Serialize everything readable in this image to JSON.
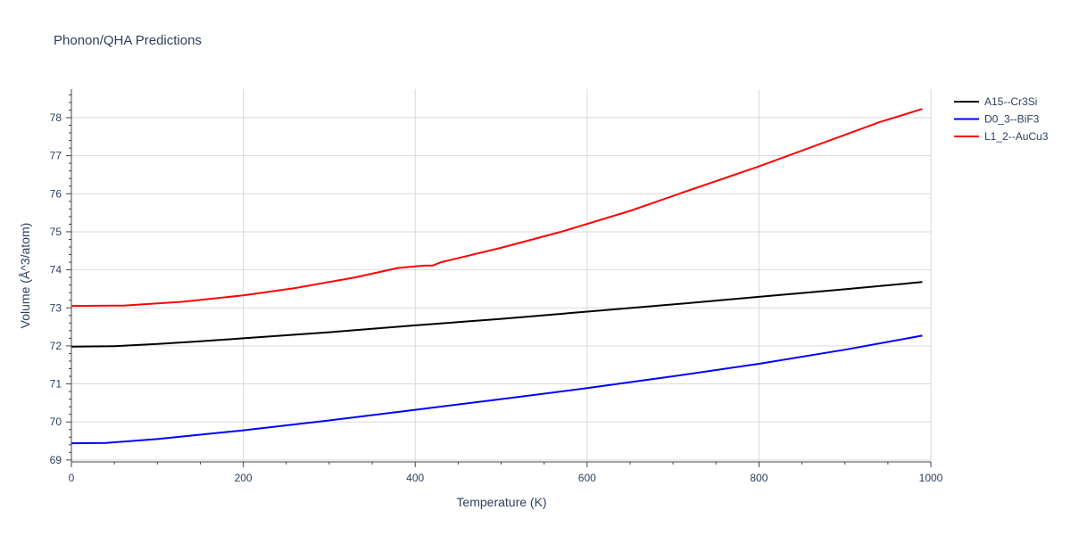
{
  "chart_data": {
    "type": "line",
    "title": "Phonon/QHA Predictions",
    "xlabel": "Temperature (K)",
    "ylabel": "Volume (Å^3/atom)",
    "xlim": [
      0,
      1000
    ],
    "ylim": [
      68.95,
      78.75
    ],
    "x_ticks": [
      0,
      200,
      400,
      600,
      800,
      1000
    ],
    "y_ticks": [
      69,
      70,
      71,
      72,
      73,
      74,
      75,
      76,
      77,
      78
    ],
    "grid": true,
    "legend_position": "top-right",
    "series": [
      {
        "name": "A15--Cr3Si",
        "color": "#000000",
        "x": [
          0,
          50,
          100,
          150,
          200,
          300,
          400,
          500,
          600,
          700,
          800,
          900,
          990
        ],
        "y": [
          71.98,
          71.99,
          72.05,
          72.12,
          72.2,
          72.36,
          72.54,
          72.71,
          72.9,
          73.09,
          73.29,
          73.49,
          73.68
        ]
      },
      {
        "name": "D0_3--BiF3",
        "color": "#0000ff",
        "x": [
          0,
          40,
          100,
          200,
          300,
          400,
          500,
          600,
          700,
          800,
          900,
          990
        ],
        "y": [
          69.44,
          69.45,
          69.55,
          69.78,
          70.04,
          70.32,
          70.6,
          70.89,
          71.2,
          71.53,
          71.9,
          72.27
        ]
      },
      {
        "name": "L1_2--AuCu3",
        "color": "#ff0000",
        "x": [
          0,
          60,
          130,
          200,
          260,
          330,
          380,
          410,
          420,
          430,
          500,
          570,
          650,
          720,
          800,
          870,
          940,
          990
        ],
        "y": [
          73.05,
          73.06,
          73.16,
          73.33,
          73.52,
          73.8,
          74.05,
          74.11,
          74.11,
          74.2,
          74.58,
          75.0,
          75.55,
          76.1,
          76.72,
          77.3,
          77.88,
          78.23
        ]
      }
    ]
  }
}
